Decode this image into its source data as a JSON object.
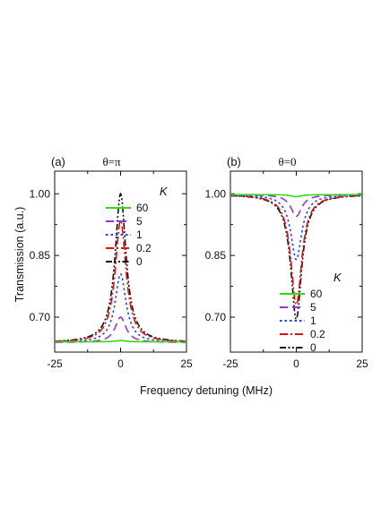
{
  "figure": {
    "ylabel": "Transmission (a.u.)",
    "xlabel": "Frequency detuning (MHz)"
  },
  "chart_data": [
    {
      "type": "line",
      "panel_label": "(a)",
      "title": "θ=π",
      "xlim": [
        -25,
        25
      ],
      "ylim": [
        0.615,
        1.055
      ],
      "xticks": [
        -25,
        0,
        25
      ],
      "xtick_labels": [
        "-25",
        "0",
        "25"
      ],
      "yticks": [
        0.7,
        0.85,
        1.0
      ],
      "ytick_labels": [
        "0.70",
        "0.85",
        "1.00"
      ],
      "legend_title": "K",
      "legend_position": "top-right",
      "line_shape": "lorentzian-peak",
      "baseline": 0.638,
      "half_width_mhz": 2.5,
      "series": [
        {
          "name": "60",
          "color": "#33dd11",
          "dash": "solid",
          "peak": 0.643,
          "baseline": 0.64
        },
        {
          "name": "5",
          "color": "#9933dd",
          "dash": "9 5",
          "peak": 0.7
        },
        {
          "name": "1",
          "color": "#2244ee",
          "dash": "2.5 3",
          "peak": 0.805
        },
        {
          "name": "0.2",
          "color": "#dd1111",
          "dash": "9 3 2 3",
          "peak": 0.935
        },
        {
          "name": "0",
          "color": "#111111",
          "dash": "7 2.5 2 2.5 2 2.5",
          "peak": 1.0
        }
      ]
    },
    {
      "type": "line",
      "panel_label": "(b)",
      "title": "θ=0",
      "xlim": [
        -25,
        25
      ],
      "ylim": [
        0.615,
        1.055
      ],
      "xticks": [
        -25,
        0,
        25
      ],
      "xtick_labels": [
        "-25",
        "0",
        "25"
      ],
      "yticks": [
        0.7,
        0.85,
        1.0
      ],
      "ytick_labels": [
        "0.70",
        "0.85",
        "1.00"
      ],
      "legend_title": "K",
      "legend_position": "bottom-right",
      "line_shape": "lorentzian-dip",
      "baseline": 0.998,
      "half_width_mhz": 2.5,
      "series": [
        {
          "name": "60",
          "color": "#33dd11",
          "dash": "solid",
          "dip": 0.993
        },
        {
          "name": "5",
          "color": "#9933dd",
          "dash": "9 5",
          "dip": 0.945
        },
        {
          "name": "1",
          "color": "#2244ee",
          "dash": "2.5 3",
          "dip": 0.84
        },
        {
          "name": "0.2",
          "color": "#dd1111",
          "dash": "9 3 2 3",
          "dip": 0.73
        },
        {
          "name": "0",
          "color": "#111111",
          "dash": "7 2.5 2 2.5 2 2.5",
          "dip": 0.695
        }
      ]
    }
  ]
}
